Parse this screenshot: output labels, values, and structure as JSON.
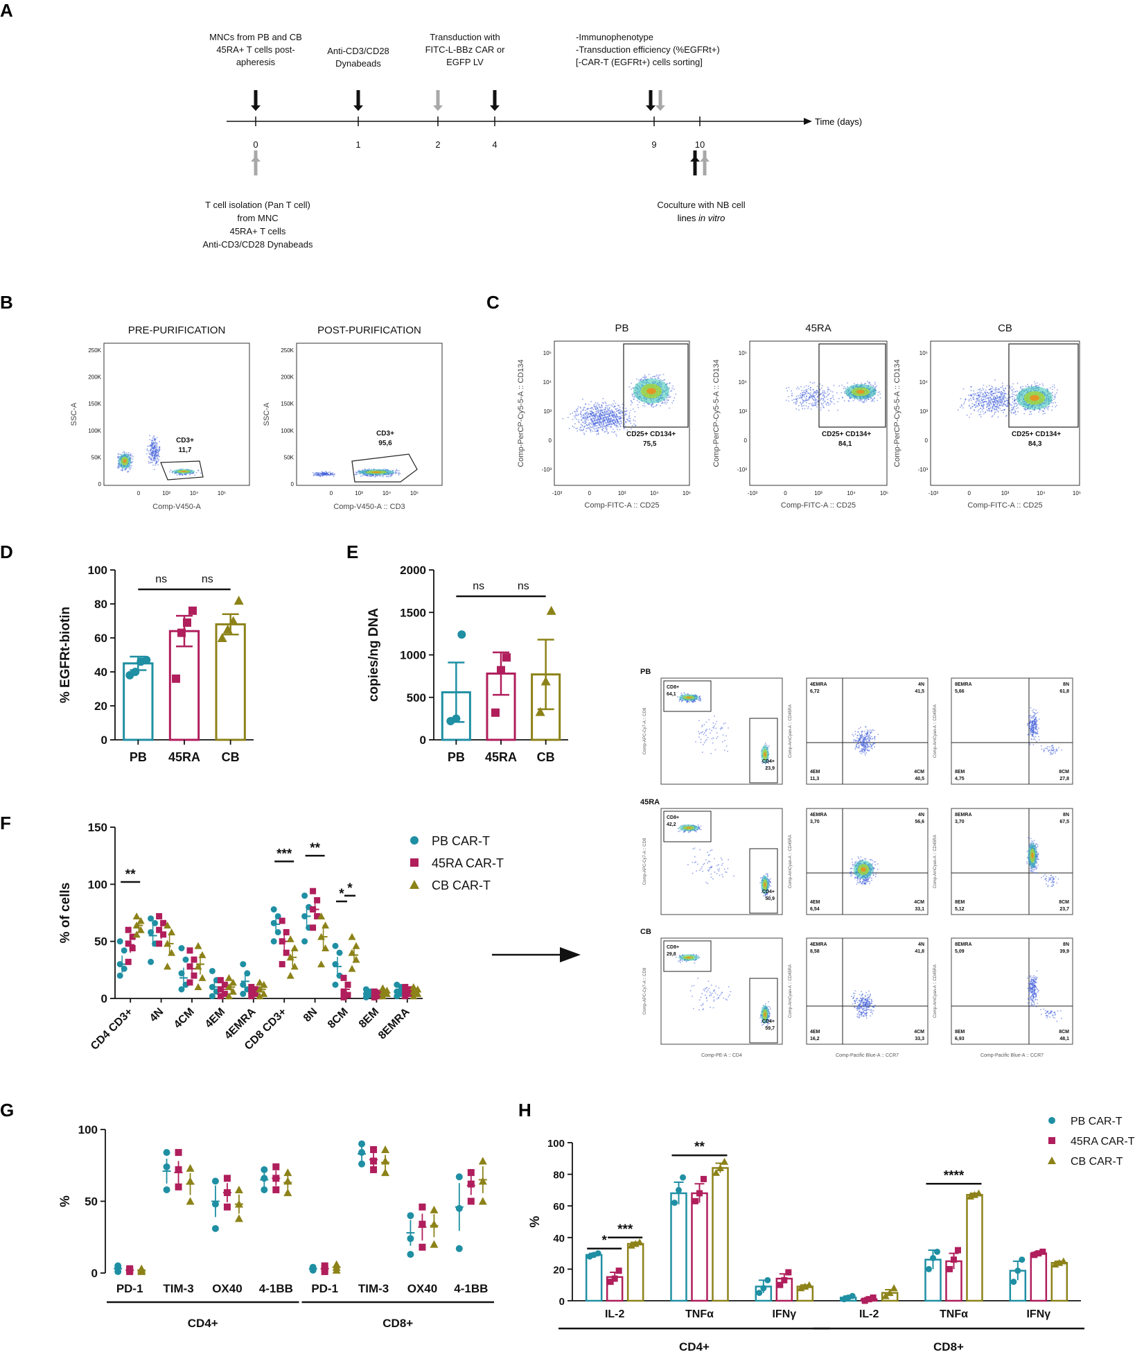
{
  "panels": {
    "A": "A",
    "B": "B",
    "C": "C",
    "D": "D",
    "E": "E",
    "F": "F",
    "G": "G",
    "H": "H"
  },
  "colors": {
    "pb": "#1f8fa3",
    "ra": "#b01e5c",
    "cb": "#8c8218",
    "black": "#111111",
    "grey": "#a8a8a8"
  },
  "timeline": {
    "axis_label": "Time (days)",
    "ticks": [
      "0",
      "1",
      "2",
      "4",
      "9",
      "10"
    ],
    "top_notes": [
      [
        "MNCs from PB and CB",
        "45RA+ T cells post-",
        "apheresis"
      ],
      [
        "Anti-CD3/CD28",
        "Dynabeads"
      ],
      [
        "Transduction with",
        "FITC-L-BBz CAR or",
        "EGFP LV"
      ],
      [
        "-Immunophenotype",
        "-Transduction efficiency (%EGFRt+)",
        "[-CAR-T (EGFRt+) cells sorting]"
      ]
    ],
    "bottom_note_left": [
      "T cell isolation (Pan T cell)",
      "from MNC",
      "45RA+ T cells",
      "Anti-CD3/CD28 Dynabeads"
    ],
    "bottom_note_right_1": "Coculture with NB cell",
    "bottom_note_right_2a": "lines ",
    "bottom_note_right_2b": "in vitro"
  },
  "panel_b": {
    "plots": [
      {
        "title": "PRE-PURIFICATION",
        "gate": "CD3+",
        "value": "11,7",
        "ylabel": "SSC-A",
        "xlabel": "Comp-V450-A"
      },
      {
        "title": "POST-PURIFICATION",
        "gate": "CD3+",
        "value": "95,6",
        "ylabel": "SSC-A",
        "xlabel": "Comp-V450-A :: CD3"
      }
    ],
    "yticks": [
      "250K",
      "200K",
      "150K",
      "100K",
      "50K",
      "0"
    ],
    "xticks": [
      "0",
      "10³",
      "10⁴",
      "10⁵"
    ]
  },
  "panel_c": {
    "plots": [
      {
        "title": "PB",
        "gate": "CD25+ CD134+",
        "value": "75,5"
      },
      {
        "title": "45RA",
        "gate": "CD25+ CD134+",
        "value": "84,1"
      },
      {
        "title": "CB",
        "gate": "CD25+ CD134+",
        "value": "84,3"
      }
    ],
    "ylabel": "Comp-PerCP-Cy5-5-A :: CD134",
    "xlabel": "Comp-FITC-A :: CD25",
    "xticks": [
      "-10³",
      "0",
      "10³",
      "10⁴",
      "10⁵"
    ],
    "yticks": [
      "10⁵",
      "10⁴",
      "10³",
      "0",
      "-10³"
    ]
  },
  "chart_data": [
    {
      "id": "D",
      "type": "bar",
      "ylabel": "% EGFRt-biotin",
      "ylim": [
        0,
        100
      ],
      "yticks": [
        "0",
        "20",
        "40",
        "60",
        "80",
        "100"
      ],
      "categories": [
        "PB",
        "45RA",
        "CB"
      ],
      "means": [
        45,
        64,
        68
      ],
      "sem": [
        4,
        9,
        6
      ],
      "points": [
        [
          38,
          40,
          46,
          47
        ],
        [
          36,
          63,
          69,
          76
        ],
        [
          60,
          65,
          70,
          82
        ]
      ],
      "significance": [
        {
          "label": "ns",
          "from": 0,
          "to": 1
        },
        {
          "label": "ns",
          "from": 1,
          "to": 2
        }
      ]
    },
    {
      "id": "E",
      "type": "bar",
      "ylabel": "copies/ng DNA",
      "ylim": [
        0,
        2000
      ],
      "yticks": [
        "0",
        "500",
        "1000",
        "1500",
        "2000"
      ],
      "categories": [
        "PB",
        "45RA",
        "CB"
      ],
      "means": [
        560,
        780,
        770
      ],
      "sem": [
        350,
        250,
        410
      ],
      "points": [
        [
          220,
          250,
          1240
        ],
        [
          320,
          820,
          970
        ],
        [
          330,
          690,
          1520
        ]
      ],
      "significance": [
        {
          "label": "ns",
          "from": 0,
          "to": 1
        },
        {
          "label": "ns",
          "from": 1,
          "to": 2
        }
      ]
    },
    {
      "id": "F",
      "type": "scatter",
      "ylabel": "% of cells",
      "ylim": [
        0,
        150
      ],
      "yticks": [
        "0",
        "50",
        "100",
        "150"
      ],
      "categories": [
        "CD4 CD3+",
        "4N",
        "4CM",
        "4EM",
        "4EMRA",
        "CD8 CD3+",
        "8N",
        "8CM",
        "8EM",
        "8EMRA"
      ],
      "series": [
        {
          "name": "PB CAR-T",
          "means": [
            30,
            55,
            18,
            10,
            15,
            65,
            72,
            28,
            4,
            7
          ],
          "points": [
            [
              20,
              26,
              30,
              42,
              50
            ],
            [
              32,
              48,
              58,
              66,
              70
            ],
            [
              8,
              12,
              22,
              34,
              44
            ],
            [
              2,
              6,
              10,
              16,
              24
            ],
            [
              4,
              8,
              12,
              22,
              30
            ],
            [
              50,
              58,
              66,
              72,
              78
            ],
            [
              50,
              62,
              72,
              80,
              90
            ],
            [
              12,
              20,
              30,
              40,
              46
            ],
            [
              1,
              3,
              4,
              6,
              8
            ],
            [
              2,
              4,
              6,
              10,
              12
            ]
          ]
        },
        {
          "name": "45RA CAR-T",
          "means": [
            47,
            58,
            26,
            8,
            6,
            50,
            78,
            8,
            3,
            6
          ],
          "points": [
            [
              32,
              44,
              48,
              54,
              60
            ],
            [
              48,
              56,
              60,
              66,
              72
            ],
            [
              14,
              20,
              28,
              34,
              42
            ],
            [
              2,
              4,
              8,
              12,
              16
            ],
            [
              2,
              4,
              6,
              8,
              10
            ],
            [
              30,
              40,
              50,
              58,
              68
            ],
            [
              62,
              72,
              78,
              86,
              94
            ],
            [
              1,
              3,
              6,
              12,
              18
            ],
            [
              1,
              2,
              3,
              5,
              6
            ],
            [
              2,
              4,
              6,
              8,
              10
            ]
          ]
        },
        {
          "name": "CB CAR-T",
          "means": [
            64,
            48,
            30,
            10,
            8,
            36,
            54,
            38,
            5,
            6
          ],
          "points": [
            [
              56,
              60,
              64,
              68,
              72
            ],
            [
              28,
              40,
              48,
              58,
              64
            ],
            [
              10,
              18,
              28,
              38,
              46
            ],
            [
              2,
              6,
              10,
              14,
              18
            ],
            [
              2,
              4,
              8,
              12,
              14
            ],
            [
              20,
              28,
              36,
              44,
              52
            ],
            [
              30,
              44,
              54,
              64,
              72
            ],
            [
              26,
              34,
              40,
              46,
              54
            ],
            [
              2,
              4,
              5,
              7,
              9
            ],
            [
              2,
              4,
              6,
              8,
              10
            ]
          ]
        }
      ],
      "significance": [
        {
          "label": "**",
          "cat": 0,
          "y": 102
        },
        {
          "label": "***",
          "cat": 5,
          "y": 120
        },
        {
          "label": "**",
          "cat": 6,
          "y": 125
        },
        {
          "label": "*",
          "cat": 7,
          "y": 85,
          "pair": "PB-45RA"
        },
        {
          "label": "*",
          "cat": 7,
          "y": 90,
          "pair": "45RA-CB"
        }
      ]
    },
    {
      "id": "G",
      "type": "scatter",
      "ylabel": "%",
      "ylim": [
        0,
        100
      ],
      "yticks": [
        "0",
        "50",
        "100"
      ],
      "categories": [
        "PD-1",
        "TIM-3",
        "OX40",
        "4-1BB",
        "PD-1",
        "TIM-3",
        "OX40",
        "4-1BB"
      ],
      "groups": [
        {
          "label": "CD4+",
          "from": 0,
          "to": 3
        },
        {
          "label": "CD8+",
          "from": 4,
          "to": 7
        }
      ],
      "series": [
        {
          "name": "PB CAR-T",
          "means": [
            3,
            71,
            50,
            65,
            3,
            83,
            28,
            46
          ],
          "points": [
            [
              1,
              4,
              5
            ],
            [
              58,
              74,
              84
            ],
            [
              31,
              48,
              64
            ],
            [
              58,
              66,
              72
            ],
            [
              2,
              3,
              4
            ],
            [
              76,
              84,
              90
            ],
            [
              13,
              24,
              40
            ],
            [
              17,
              45,
              67
            ]
          ]
        },
        {
          "name": "45RA CAR-T",
          "means": [
            2,
            70,
            56,
            66,
            3,
            79,
            32,
            61
          ],
          "points": [
            [
              1,
              2,
              3
            ],
            [
              60,
              72,
              84
            ],
            [
              46,
              56,
              66
            ],
            [
              58,
              66,
              74
            ],
            [
              1,
              3,
              5
            ],
            [
              72,
              78,
              86
            ],
            [
              18,
              34,
              46
            ],
            [
              50,
              62,
              70
            ]
          ]
        },
        {
          "name": "CB CAR-T",
          "means": [
            2,
            62,
            48,
            63,
            4,
            77,
            33,
            65
          ],
          "points": [
            [
              1,
              2,
              3
            ],
            [
              50,
              64,
              73
            ],
            [
              38,
              48,
              58
            ],
            [
              56,
              64,
              70
            ],
            [
              2,
              4,
              6
            ],
            [
              70,
              78,
              86
            ],
            [
              20,
              34,
              44
            ],
            [
              50,
              64,
              78
            ]
          ]
        }
      ]
    },
    {
      "id": "H",
      "type": "bar",
      "ylabel": "%",
      "ylim": [
        0,
        100
      ],
      "yticks": [
        "0",
        "20",
        "40",
        "60",
        "80",
        "100"
      ],
      "categories": [
        "IL-2",
        "TNFα",
        "IFNγ",
        "IL-2",
        "TNFα",
        "IFNγ"
      ],
      "groups": [
        {
          "label": "CD4+",
          "from": 0,
          "to": 2
        },
        {
          "label": "CD8+",
          "from": 3,
          "to": 5
        }
      ],
      "series": [
        {
          "name": "PB CAR-T",
          "means": [
            29,
            68,
            9,
            2,
            26,
            19
          ],
          "sem": [
            1,
            7,
            4,
            1,
            6,
            6
          ],
          "points": [
            [
              28,
              29,
              30
            ],
            [
              62,
              70,
              78
            ],
            [
              5,
              8,
              13
            ],
            [
              1,
              2,
              3
            ],
            [
              20,
              27,
              31
            ],
            [
              12,
              19,
              26
            ]
          ]
        },
        {
          "name": "45RA CAR-T",
          "means": [
            15,
            68,
            14,
            1,
            25,
            30
          ],
          "sem": [
            3,
            6,
            3,
            1,
            5,
            1
          ],
          "points": [
            [
              12,
              14,
              19
            ],
            [
              63,
              68,
              77
            ],
            [
              10,
              13,
              18
            ],
            [
              0,
              1,
              2
            ],
            [
              20,
              26,
              32
            ],
            [
              29,
              30,
              31
            ]
          ]
        },
        {
          "name": "CB CAR-T",
          "means": [
            36,
            84,
            9,
            5,
            67,
            24
          ],
          "sem": [
            1,
            3,
            1,
            2,
            1,
            1
          ],
          "points": [
            [
              35,
              36,
              37
            ],
            [
              81,
              84,
              88
            ],
            [
              8,
              9,
              10
            ],
            [
              3,
              5,
              8
            ],
            [
              66,
              67,
              68
            ],
            [
              23,
              24,
              25
            ]
          ]
        }
      ],
      "significance": [
        {
          "label": "*",
          "from_series": 0,
          "to_series": 1,
          "cat": 0,
          "y": 33
        },
        {
          "label": "***",
          "from_series": 1,
          "to_series": 2,
          "cat": 0,
          "y": 40
        },
        {
          "label": "**",
          "from_series": 0,
          "to_series": 2,
          "cat": 1,
          "y": 92
        },
        {
          "label": "****",
          "from_series": 0,
          "to_series": 2,
          "cat": 4,
          "y": 74
        }
      ]
    }
  ],
  "legend_f": [
    "PB CAR-T",
    "45RA CAR-T",
    "CB CAR-T"
  ],
  "legend_h": [
    "PB CAR-T",
    "45RA CAR-T",
    "CB CAR-T"
  ],
  "flow_grid": {
    "rows": [
      {
        "label": "PB",
        "cd8": "CD8+",
        "cd8v": "64,1",
        "cd4": "CD4+",
        "cd4v": "23,9",
        "q4": {
          "tl": "4EMRA",
          "tlv": "6,72",
          "tr": "4N",
          "trv": "41,5",
          "bl": "4EM",
          "blv": "11,3",
          "br": "4CM",
          "brv": "40,5"
        },
        "q8": {
          "tl": "8EMRA",
          "tlv": "5,66",
          "tr": "8N",
          "trv": "61,8",
          "bl": "8EM",
          "blv": "4,75",
          "br": "8CM",
          "brv": "27,8"
        }
      },
      {
        "label": "45RA",
        "cd8": "CD8+",
        "cd8v": "42,2",
        "cd4": "CD4+",
        "cd4v": "50,9",
        "q4": {
          "tl": "4EMRA",
          "tlv": "3,70",
          "tr": "4N",
          "trv": "56,6",
          "bl": "4EM",
          "blv": "6,54",
          "br": "4CM",
          "brv": "33,1"
        },
        "q8": {
          "tl": "8EMRA",
          "tlv": "3,70",
          "tr": "8N",
          "trv": "67,5",
          "bl": "8EM",
          "blv": "5,12",
          "br": "8CM",
          "brv": "23,7"
        }
      },
      {
        "label": "CB",
        "cd8": "CD8+",
        "cd8v": "29,8",
        "cd4": "CD4+",
        "cd4v": "59,7",
        "q4": {
          "tl": "4EMRA",
          "tlv": "8,58",
          "tr": "4N",
          "trv": "41,8",
          "bl": "4EM",
          "blv": "16,2",
          "br": "4CM",
          "brv": "33,3"
        },
        "q8": {
          "tl": "8EMRA",
          "tlv": "5,09",
          "tr": "8N",
          "trv": "39,9",
          "bl": "8EM",
          "blv": "6,93",
          "br": "8CM",
          "brv": "48,1"
        }
      }
    ],
    "ylab1": "Comp-APC-Cy7-A :: CD8",
    "xlab1": "Comp-PE-A :: CD4",
    "ylab2": "Comp-AmCyan-A :: CD45RA",
    "xlab2": "Comp-Pacific Blue-A :: CCR7"
  }
}
